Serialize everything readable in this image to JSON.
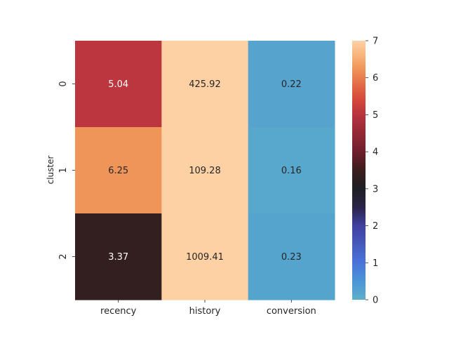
{
  "chart_data": {
    "type": "heatmap",
    "title": "",
    "xlabel": "",
    "ylabel": "cluster",
    "columns": [
      "recency",
      "history",
      "conversion"
    ],
    "rows": [
      "0",
      "1",
      "2"
    ],
    "values": [
      [
        5.04,
        425.92,
        0.22
      ],
      [
        6.25,
        109.28,
        0.16
      ],
      [
        3.37,
        1009.41,
        0.23
      ]
    ],
    "value_labels": [
      [
        "5.04",
        "425.92",
        "0.22"
      ],
      [
        "6.25",
        "109.28",
        "0.16"
      ],
      [
        "3.37",
        "1009.41",
        "0.23"
      ]
    ],
    "colormap": "icefire",
    "vmin": 0,
    "vmax": 7,
    "colorbar_ticks": [
      "0",
      "1",
      "2",
      "3",
      "4",
      "5",
      "6",
      "7"
    ],
    "colormap_stops": [
      {
        "value": 0,
        "color": "#5fb0c8"
      },
      {
        "value": 0.5,
        "color": "#4a95d6"
      },
      {
        "value": 1,
        "color": "#4a74d8"
      },
      {
        "value": 2,
        "color": "#4040a0"
      },
      {
        "value": 2.5,
        "color": "#2a2448"
      },
      {
        "value": 3,
        "color": "#1f1f24"
      },
      {
        "value": 3.5,
        "color": "#3a1d1f"
      },
      {
        "value": 4,
        "color": "#6e1e2c"
      },
      {
        "value": 5,
        "color": "#b8343f"
      },
      {
        "value": 5.5,
        "color": "#d94f3b"
      },
      {
        "value": 6.25,
        "color": "#f0955a"
      },
      {
        "value": 6.6,
        "color": "#f7b47a"
      },
      {
        "value": 7,
        "color": "#fed1a5"
      }
    ]
  }
}
